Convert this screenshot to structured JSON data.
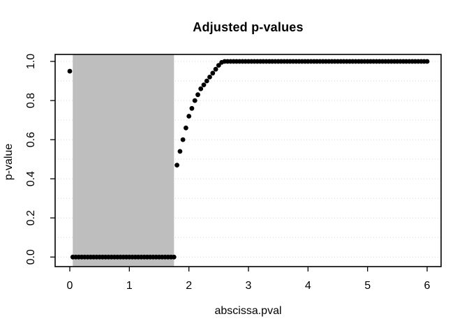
{
  "chart_data": {
    "type": "scatter",
    "title": "Adjusted p-values",
    "xlabel": "abscissa.pval",
    "ylabel": "p-value",
    "xlim": [
      0,
      6
    ],
    "ylim": [
      0,
      1
    ],
    "x_ticks": [
      0,
      1,
      2,
      3,
      4,
      5,
      6
    ],
    "x_tick_labels": [
      "0",
      "1",
      "2",
      "3",
      "4",
      "5",
      "6"
    ],
    "y_ticks": [
      0.0,
      0.2,
      0.4,
      0.6,
      0.8,
      1.0
    ],
    "y_tick_labels": [
      "0.0",
      "0.2",
      "0.4",
      "0.6",
      "0.8",
      "1.0"
    ],
    "grid": {
      "horizontal_values": [
        0,
        0.1,
        0.2,
        0.3,
        0.4,
        0.5,
        0.6,
        0.7,
        0.8,
        0.9,
        1.0
      ],
      "style": "dotted",
      "color": "#d6d6d6",
      "vertical": false
    },
    "highlight_rect": {
      "x0": 0.05,
      "x1": 1.75,
      "y0": 0,
      "y1": 1,
      "full_height": true,
      "color": "#bebebe"
    },
    "point_color": "#000000",
    "point_radius_px": 3.4,
    "legend": null,
    "points": [
      [
        0,
        0.95
      ],
      [
        0.05,
        0
      ],
      [
        0.1,
        0
      ],
      [
        0.15,
        0
      ],
      [
        0.2,
        0
      ],
      [
        0.25,
        0
      ],
      [
        0.3,
        0
      ],
      [
        0.35,
        0
      ],
      [
        0.4,
        0
      ],
      [
        0.45,
        0
      ],
      [
        0.5,
        0
      ],
      [
        0.55,
        0
      ],
      [
        0.6,
        0
      ],
      [
        0.65,
        0
      ],
      [
        0.7,
        0
      ],
      [
        0.75,
        0
      ],
      [
        0.8,
        0
      ],
      [
        0.85,
        0
      ],
      [
        0.9,
        0
      ],
      [
        0.95,
        0
      ],
      [
        1,
        0
      ],
      [
        1.05,
        0
      ],
      [
        1.1,
        0
      ],
      [
        1.15,
        0
      ],
      [
        1.2,
        0
      ],
      [
        1.25,
        0
      ],
      [
        1.3,
        0
      ],
      [
        1.35,
        0
      ],
      [
        1.4,
        0
      ],
      [
        1.45,
        0
      ],
      [
        1.5,
        0
      ],
      [
        1.55,
        0
      ],
      [
        1.6,
        0
      ],
      [
        1.65,
        0
      ],
      [
        1.7,
        0
      ],
      [
        1.75,
        0
      ],
      [
        1.8,
        0.47
      ],
      [
        1.85,
        0.54
      ],
      [
        1.9,
        0.6
      ],
      [
        1.95,
        0.66
      ],
      [
        2,
        0.72
      ],
      [
        2.05,
        0.76
      ],
      [
        2.1,
        0.8
      ],
      [
        2.15,
        0.83
      ],
      [
        2.2,
        0.86
      ],
      [
        2.25,
        0.88
      ],
      [
        2.3,
        0.9
      ],
      [
        2.35,
        0.92
      ],
      [
        2.4,
        0.94
      ],
      [
        2.45,
        0.96
      ],
      [
        2.5,
        0.98
      ],
      [
        2.55,
        0.995
      ],
      [
        2.6,
        1
      ],
      [
        2.65,
        1
      ],
      [
        2.7,
        1
      ],
      [
        2.75,
        1
      ],
      [
        2.8,
        1
      ],
      [
        2.85,
        1
      ],
      [
        2.9,
        1
      ],
      [
        2.95,
        1
      ],
      [
        3,
        1
      ],
      [
        3.05,
        1
      ],
      [
        3.1,
        1
      ],
      [
        3.15,
        1
      ],
      [
        3.2,
        1
      ],
      [
        3.25,
        1
      ],
      [
        3.3,
        1
      ],
      [
        3.35,
        1
      ],
      [
        3.4,
        1
      ],
      [
        3.45,
        1
      ],
      [
        3.5,
        1
      ],
      [
        3.55,
        1
      ],
      [
        3.6,
        1
      ],
      [
        3.65,
        1
      ],
      [
        3.7,
        1
      ],
      [
        3.75,
        1
      ],
      [
        3.8,
        1
      ],
      [
        3.85,
        1
      ],
      [
        3.9,
        1
      ],
      [
        3.95,
        1
      ],
      [
        4,
        1
      ],
      [
        4.05,
        1
      ],
      [
        4.1,
        1
      ],
      [
        4.15,
        1
      ],
      [
        4.2,
        1
      ],
      [
        4.25,
        1
      ],
      [
        4.3,
        1
      ],
      [
        4.35,
        1
      ],
      [
        4.4,
        1
      ],
      [
        4.45,
        1
      ],
      [
        4.5,
        1
      ],
      [
        4.55,
        1
      ],
      [
        4.6,
        1
      ],
      [
        4.65,
        1
      ],
      [
        4.7,
        1
      ],
      [
        4.75,
        1
      ],
      [
        4.8,
        1
      ],
      [
        4.85,
        1
      ],
      [
        4.9,
        1
      ],
      [
        4.95,
        1
      ],
      [
        5,
        1
      ],
      [
        5.05,
        1
      ],
      [
        5.1,
        1
      ],
      [
        5.15,
        1
      ],
      [
        5.2,
        1
      ],
      [
        5.25,
        1
      ],
      [
        5.3,
        1
      ],
      [
        5.35,
        1
      ],
      [
        5.4,
        1
      ],
      [
        5.45,
        1
      ],
      [
        5.5,
        1
      ],
      [
        5.55,
        1
      ],
      [
        5.6,
        1
      ],
      [
        5.65,
        1
      ],
      [
        5.7,
        1
      ],
      [
        5.75,
        1
      ],
      [
        5.8,
        1
      ],
      [
        5.85,
        1
      ],
      [
        5.9,
        1
      ],
      [
        5.95,
        1
      ],
      [
        6,
        1
      ]
    ],
    "colors": {
      "background": "#ffffff",
      "box": "#000000",
      "tick": "#000000",
      "text": "#000000"
    }
  }
}
